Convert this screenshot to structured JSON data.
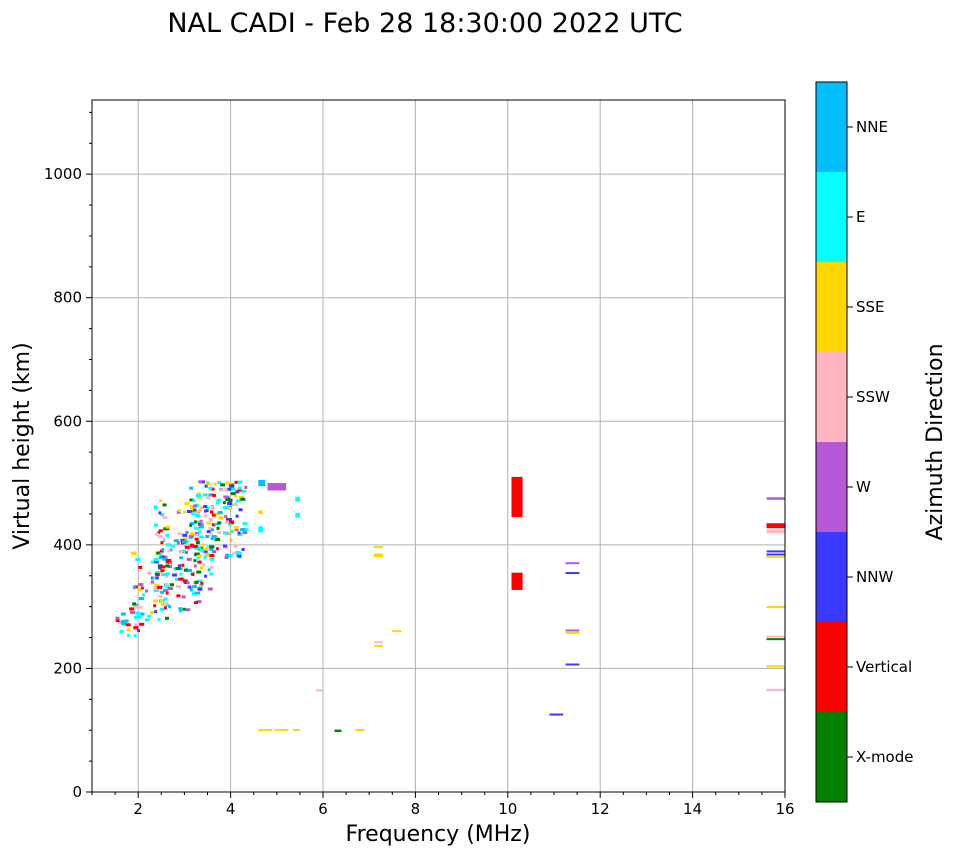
{
  "chart_data": {
    "type": "scatter",
    "title": "NAL CADI - Feb 28 18:30:00 2022 UTC",
    "xlabel": "Frequency (MHz)",
    "ylabel": "Virtual height (km)",
    "xlim": [
      1,
      16
    ],
    "ylim": [
      0,
      1120
    ],
    "xticks": [
      2,
      4,
      6,
      8,
      10,
      12,
      14,
      16
    ],
    "yticks": [
      0,
      200,
      400,
      600,
      800,
      1000
    ],
    "grid": true,
    "colorbar": {
      "label": "Azimuth Direction",
      "entries": [
        {
          "name": "X-mode",
          "color": "#008000"
        },
        {
          "name": "Vertical",
          "color": "#ff0000"
        },
        {
          "name": "NNW",
          "color": "#3a3aff"
        },
        {
          "name": "W",
          "color": "#b659d6"
        },
        {
          "name": "SSW",
          "color": "#ffb6c1"
        },
        {
          "name": "SSE",
          "color": "#ffd700"
        },
        {
          "name": "E",
          "color": "#00ffff"
        },
        {
          "name": "NNE",
          "color": "#00bfff"
        }
      ]
    },
    "echo_cloud": {
      "description_free": true,
      "segments": [
        {
          "f0": 1.5,
          "f1": 2.1,
          "h0": 255,
          "h1": 300
        },
        {
          "f0": 1.8,
          "f1": 2.6,
          "h0": 280,
          "h1": 390
        },
        {
          "f0": 2.3,
          "f1": 2.6,
          "h0": 380,
          "h1": 480
        },
        {
          "f0": 2.4,
          "f1": 3.3,
          "h0": 295,
          "h1": 420
        },
        {
          "f0": 2.8,
          "f1": 3.6,
          "h0": 330,
          "h1": 470
        },
        {
          "f0": 3.1,
          "f1": 4.3,
          "h0": 380,
          "h1": 505
        },
        {
          "f0": 3.5,
          "f1": 4.3,
          "h0": 420,
          "h1": 505
        }
      ]
    },
    "echoes": [
      {
        "f0": 10.08,
        "f1": 10.32,
        "h0": 445,
        "h1": 510,
        "azimuth": "Vertical"
      },
      {
        "f0": 10.08,
        "f1": 10.32,
        "h0": 327,
        "h1": 355,
        "azimuth": "Vertical"
      },
      {
        "f0": 11.25,
        "f1": 11.55,
        "h0": 369,
        "h1": 372,
        "azimuth": "W"
      },
      {
        "f0": 11.25,
        "f1": 11.55,
        "h0": 353,
        "h1": 356,
        "azimuth": "NNW"
      },
      {
        "f0": 11.25,
        "f1": 11.55,
        "h0": 260,
        "h1": 263,
        "azimuth": "W"
      },
      {
        "f0": 11.25,
        "f1": 11.55,
        "h0": 256,
        "h1": 259,
        "azimuth": "SSE"
      },
      {
        "f0": 11.25,
        "f1": 11.55,
        "h0": 205,
        "h1": 208,
        "azimuth": "NNW"
      },
      {
        "f0": 10.9,
        "f1": 11.2,
        "h0": 124,
        "h1": 127,
        "azimuth": "NNW"
      },
      {
        "f0": 15.6,
        "f1": 16.0,
        "h0": 473,
        "h1": 477,
        "azimuth": "W"
      },
      {
        "f0": 15.6,
        "f1": 16.0,
        "h0": 427,
        "h1": 435,
        "azimuth": "Vertical"
      },
      {
        "f0": 15.6,
        "f1": 16.0,
        "h0": 419,
        "h1": 425,
        "azimuth": "SSW"
      },
      {
        "f0": 15.6,
        "f1": 16.0,
        "h0": 388,
        "h1": 391,
        "azimuth": "NNW"
      },
      {
        "f0": 15.6,
        "f1": 16.0,
        "h0": 383,
        "h1": 386,
        "azimuth": "NNW"
      },
      {
        "f0": 15.6,
        "f1": 16.0,
        "h0": 379,
        "h1": 382,
        "azimuth": "SSE"
      },
      {
        "f0": 15.6,
        "f1": 16.0,
        "h0": 298,
        "h1": 301,
        "azimuth": "SSE"
      },
      {
        "f0": 15.6,
        "f1": 16.0,
        "h0": 250,
        "h1": 253,
        "azimuth": "SSW"
      },
      {
        "f0": 15.6,
        "f1": 16.0,
        "h0": 246,
        "h1": 249,
        "azimuth": "X-mode"
      },
      {
        "f0": 15.6,
        "f1": 16.0,
        "h0": 202,
        "h1": 205,
        "azimuth": "SSE"
      },
      {
        "f0": 15.6,
        "f1": 16.0,
        "h0": 163,
        "h1": 167,
        "azimuth": "SSW"
      },
      {
        "f0": 7.1,
        "f1": 7.3,
        "h0": 380,
        "h1": 386,
        "azimuth": "SSE"
      },
      {
        "f0": 7.1,
        "f1": 7.3,
        "h0": 395,
        "h1": 398,
        "azimuth": "SSE"
      },
      {
        "f0": 7.1,
        "f1": 7.3,
        "h0": 241,
        "h1": 244,
        "azimuth": "SSW"
      },
      {
        "f0": 7.1,
        "f1": 7.3,
        "h0": 235,
        "h1": 238,
        "azimuth": "SSE"
      },
      {
        "f0": 7.5,
        "f1": 7.7,
        "h0": 259,
        "h1": 262,
        "azimuth": "SSE"
      },
      {
        "f0": 5.85,
        "f1": 5.98,
        "h0": 163,
        "h1": 166,
        "azimuth": "SSW"
      },
      {
        "f0": 4.6,
        "f1": 4.9,
        "h0": 99,
        "h1": 102,
        "azimuth": "SSE"
      },
      {
        "f0": 4.95,
        "f1": 5.25,
        "h0": 99,
        "h1": 102,
        "azimuth": "SSE"
      },
      {
        "f0": 5.35,
        "f1": 5.5,
        "h0": 99,
        "h1": 102,
        "azimuth": "SSE"
      },
      {
        "f0": 6.25,
        "f1": 6.4,
        "h0": 97,
        "h1": 101,
        "azimuth": "X-mode"
      },
      {
        "f0": 6.7,
        "f1": 6.9,
        "h0": 99,
        "h1": 102,
        "azimuth": "SSE"
      },
      {
        "f0": 4.6,
        "f1": 4.75,
        "h0": 495,
        "h1": 505,
        "azimuth": "NNE"
      },
      {
        "f0": 4.8,
        "f1": 5.2,
        "h0": 488,
        "h1": 500,
        "azimuth": "W"
      },
      {
        "f0": 5.4,
        "f1": 5.5,
        "h0": 470,
        "h1": 478,
        "azimuth": "E"
      },
      {
        "f0": 5.4,
        "f1": 5.5,
        "h0": 444,
        "h1": 452,
        "azimuth": "E"
      },
      {
        "f0": 4.6,
        "f1": 4.7,
        "h0": 420,
        "h1": 430,
        "azimuth": "E"
      },
      {
        "f0": 4.6,
        "f1": 4.7,
        "h0": 450,
        "h1": 456,
        "azimuth": "SSE"
      }
    ]
  }
}
